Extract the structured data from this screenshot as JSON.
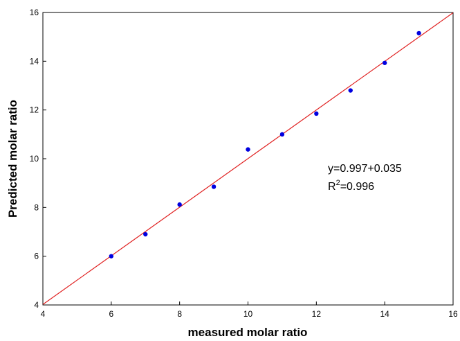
{
  "chart_data": {
    "type": "scatter",
    "x_label": "measured molar ratio",
    "y_label": "Predicted molar ratio",
    "series": [
      {
        "color": "#0000e0",
        "x": [
          6,
          7,
          8,
          9,
          10,
          11,
          12,
          13,
          14,
          15
        ],
        "values": [
          6.0,
          6.9,
          8.12,
          8.85,
          10.38,
          11.0,
          11.85,
          12.8,
          13.93,
          15.15
        ]
      }
    ],
    "fit_line": {
      "color": "#e02020",
      "x": [
        4,
        16
      ],
      "values": [
        4.02,
        15.99
      ]
    },
    "annotation_1": "y=0.997+0.035",
    "annotation_2": {
      "text": "R",
      "superscript": "2",
      "text_after": "=0.996"
    },
    "xlim": [
      4,
      16
    ],
    "ylim": [
      4,
      16
    ],
    "xticks": [
      4,
      6,
      8,
      10,
      12,
      14,
      16
    ],
    "yticks": [
      4,
      6,
      8,
      10,
      12,
      14,
      16
    ],
    "grid": false
  }
}
